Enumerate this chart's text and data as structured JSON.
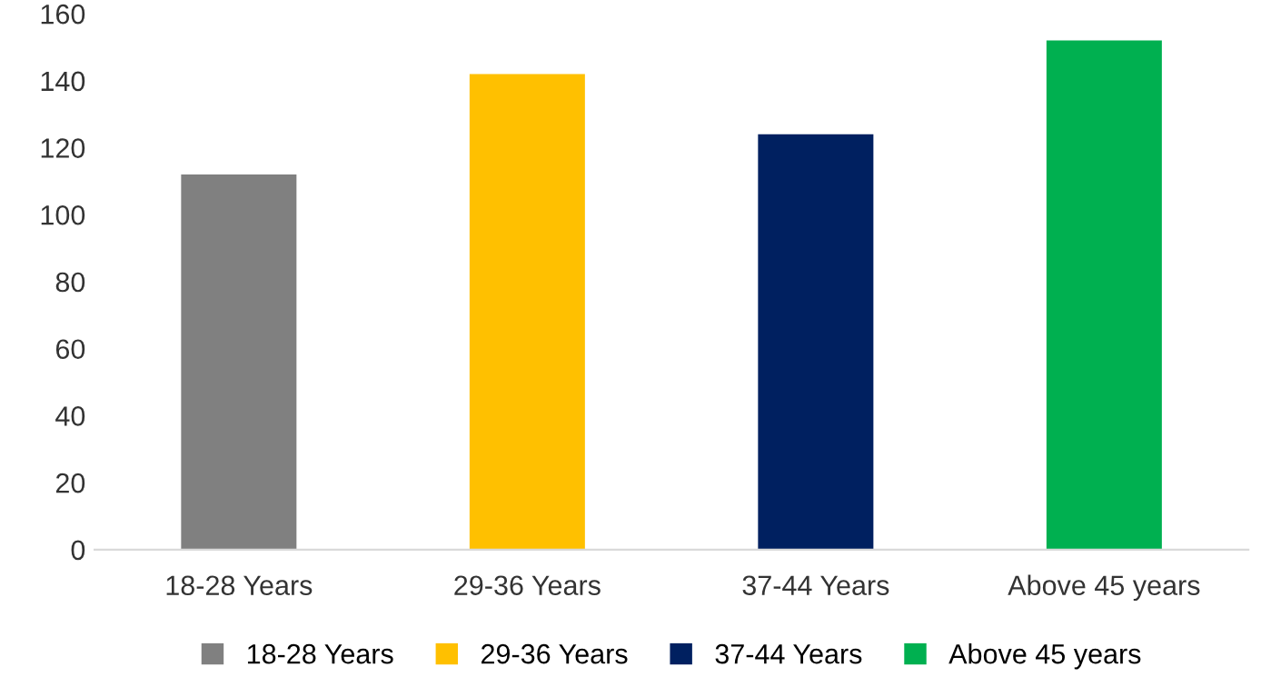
{
  "chart_data": {
    "type": "bar",
    "categories": [
      "18-28 Years",
      "29-36 Years",
      "37-44 Years",
      "Above 45 years"
    ],
    "series": [
      {
        "name": "18-28 Years",
        "color": "#808080",
        "values": [
          112,
          null,
          null,
          null
        ]
      },
      {
        "name": "29-36 Years",
        "color": "#ffc000",
        "values": [
          null,
          142,
          null,
          null
        ]
      },
      {
        "name": "37-44 Years",
        "color": "#002060",
        "values": [
          null,
          null,
          124,
          null
        ]
      },
      {
        "name": "Above 45 years",
        "color": "#00b050",
        "values": [
          null,
          null,
          null,
          152
        ]
      }
    ],
    "ylim": [
      0,
      160
    ],
    "yticks": [
      0,
      20,
      40,
      60,
      80,
      100,
      120,
      140,
      160
    ],
    "legend": "bottom"
  }
}
